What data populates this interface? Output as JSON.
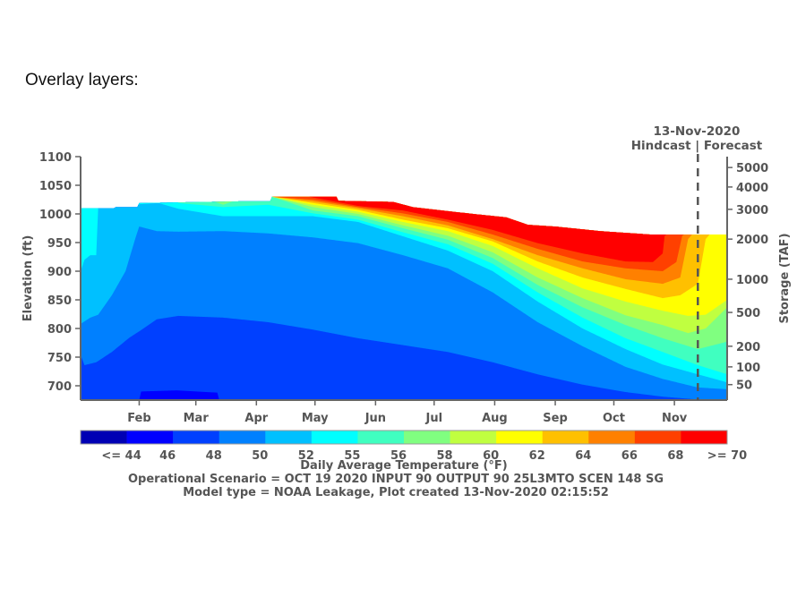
{
  "page": {
    "heading": "Overlay layers:"
  },
  "chart_data": {
    "type": "heatmap",
    "subtype": "filled-contour",
    "xlabel": "",
    "ylabel": "Elevation (ft)",
    "ylim": [
      675,
      1100
    ],
    "xlim": [
      "2020-01-02",
      "2020-11-28"
    ],
    "y_ticks": [
      700,
      750,
      800,
      850,
      900,
      950,
      1000,
      1050,
      1100
    ],
    "x_ticks": [
      {
        "date": "2020-02-01",
        "label": "Feb"
      },
      {
        "date": "2020-03-01",
        "label": "Mar"
      },
      {
        "date": "2020-04-01",
        "label": "Apr"
      },
      {
        "date": "2020-05-01",
        "label": "May"
      },
      {
        "date": "2020-06-01",
        "label": "Jun"
      },
      {
        "date": "2020-07-01",
        "label": "Jul"
      },
      {
        "date": "2020-08-01",
        "label": "Aug"
      },
      {
        "date": "2020-09-01",
        "label": "Sep"
      },
      {
        "date": "2020-10-01",
        "label": "Oct"
      },
      {
        "date": "2020-11-01",
        "label": "Nov"
      }
    ],
    "storage_axis": {
      "label": "Storage (TAF)",
      "ticks": [
        {
          "storage": 5000,
          "elevation_ft": 1081
        },
        {
          "storage": 4000,
          "elevation_ft": 1047
        },
        {
          "storage": 3000,
          "elevation_ft": 1008
        },
        {
          "storage": 2000,
          "elevation_ft": 956
        },
        {
          "storage": 1000,
          "elevation_ft": 886
        },
        {
          "storage": 500,
          "elevation_ft": 828
        },
        {
          "storage": 200,
          "elevation_ft": 769
        },
        {
          "storage": 100,
          "elevation_ft": 733
        },
        {
          "storage": 50,
          "elevation_ft": 702
        }
      ]
    },
    "marker": {
      "date": "2020-11-13",
      "label": "13-Nov-2020",
      "sublabel": "Hindcast | Forecast"
    },
    "colorbar": {
      "title": "Daily Average Temperature (°F)",
      "labels": [
        "<= 44",
        "46",
        "48",
        "50",
        "52",
        "55",
        "56",
        "58",
        "60",
        "62",
        "64",
        "66",
        "68",
        ">= 70"
      ],
      "colors": [
        "#0000b4",
        "#0000ff",
        "#0040ff",
        "#0080ff",
        "#00c0ff",
        "#00ffff",
        "#40ffc0",
        "#80ff80",
        "#c0ff40",
        "#ffff00",
        "#ffc000",
        "#ff8000",
        "#ff4000",
        "#ff0000"
      ]
    },
    "water_surface": [
      [
        "2020-01-02",
        1010
      ],
      [
        "2020-01-19",
        1010
      ],
      [
        "2020-01-20",
        1012
      ],
      [
        "2020-01-31",
        1012
      ],
      [
        "2020-02-01",
        1019
      ],
      [
        "2020-03-23",
        1022
      ],
      [
        "2020-04-08",
        1022
      ],
      [
        "2020-04-09",
        1030
      ],
      [
        "2020-05-12",
        1030
      ],
      [
        "2020-05-13",
        1023
      ],
      [
        "2020-06-10",
        1021
      ],
      [
        "2020-06-20",
        1012
      ],
      [
        "2020-07-05",
        1006
      ],
      [
        "2020-07-21",
        1000
      ],
      [
        "2020-08-07",
        994
      ],
      [
        "2020-08-18",
        981
      ],
      [
        "2020-09-01",
        978
      ],
      [
        "2020-09-24",
        970
      ],
      [
        "2020-10-20",
        964
      ],
      [
        "2020-11-28",
        964
      ]
    ],
    "base_color": "#0000ff",
    "isotherms": [
      {
        "threshold": 46,
        "color": "#0040ff",
        "points": [
          [
            "2020-01-02",
            675
          ],
          [
            "2020-02-01",
            675
          ],
          [
            "2020-02-02",
            690
          ],
          [
            "2020-02-20",
            692
          ],
          [
            "2020-03-12",
            688
          ],
          [
            "2020-03-13",
            675
          ],
          [
            "2020-11-28",
            675
          ]
        ]
      },
      {
        "threshold": 48,
        "color": "#0080ff",
        "points": [
          [
            "2020-01-02",
            754
          ],
          [
            "2020-01-04",
            736
          ],
          [
            "2020-01-10",
            741
          ],
          [
            "2020-01-18",
            759
          ],
          [
            "2020-01-27",
            784
          ],
          [
            "2020-02-01",
            795
          ],
          [
            "2020-02-10",
            816
          ],
          [
            "2020-02-21",
            822
          ],
          [
            "2020-03-15",
            819
          ],
          [
            "2020-04-07",
            811
          ],
          [
            "2020-04-30",
            798
          ],
          [
            "2020-05-23",
            783
          ],
          [
            "2020-06-15",
            771
          ],
          [
            "2020-07-08",
            759
          ],
          [
            "2020-07-31",
            741
          ],
          [
            "2020-08-23",
            720
          ],
          [
            "2020-09-15",
            702
          ],
          [
            "2020-10-07",
            689
          ],
          [
            "2020-10-26",
            681
          ],
          [
            "2020-11-13",
            676
          ],
          [
            "2020-11-28",
            675
          ]
        ]
      },
      {
        "threshold": 50,
        "color": "#00c0ff",
        "points": [
          [
            "2020-01-02",
            808
          ],
          [
            "2020-01-07",
            819
          ],
          [
            "2020-01-11",
            824
          ],
          [
            "2020-01-18",
            858
          ],
          [
            "2020-01-25",
            900
          ],
          [
            "2020-01-30",
            957
          ],
          [
            "2020-02-01",
            978
          ],
          [
            "2020-02-10",
            970
          ],
          [
            "2020-02-21",
            969
          ],
          [
            "2020-03-15",
            970
          ],
          [
            "2020-04-07",
            966
          ],
          [
            "2020-04-30",
            959
          ],
          [
            "2020-05-23",
            949
          ],
          [
            "2020-06-15",
            928
          ],
          [
            "2020-07-08",
            905
          ],
          [
            "2020-07-31",
            863
          ],
          [
            "2020-08-23",
            811
          ],
          [
            "2020-09-15",
            769
          ],
          [
            "2020-10-07",
            733
          ],
          [
            "2020-10-26",
            712
          ],
          [
            "2020-11-13",
            697
          ],
          [
            "2020-11-28",
            694
          ]
        ]
      },
      {
        "threshold": 52,
        "color": "#00ffff",
        "points": [
          [
            "2020-01-02",
            900
          ],
          [
            "2020-01-04",
            920
          ],
          [
            "2020-01-07",
            928
          ],
          [
            "2020-01-10",
            928
          ],
          [
            "2020-01-11",
            1012
          ],
          [
            "2020-02-10",
            1019
          ],
          [
            "2020-02-11",
            1019
          ],
          [
            "2020-02-21",
            1009
          ],
          [
            "2020-03-15",
            996
          ],
          [
            "2020-04-07",
            996
          ],
          [
            "2020-04-30",
            996
          ],
          [
            "2020-05-23",
            986
          ],
          [
            "2020-06-15",
            961
          ],
          [
            "2020-07-08",
            936
          ],
          [
            "2020-07-31",
            900
          ],
          [
            "2020-08-23",
            847
          ],
          [
            "2020-09-15",
            800
          ],
          [
            "2020-10-07",
            764
          ],
          [
            "2020-10-26",
            737
          ],
          [
            "2020-11-13",
            720
          ],
          [
            "2020-11-28",
            706
          ]
        ]
      },
      {
        "threshold": 55,
        "color": "#40ffc0",
        "points": [
          [
            "2020-02-21",
            1019
          ],
          [
            "2020-03-15",
            1012
          ],
          [
            "2020-04-07",
            1016
          ],
          [
            "2020-04-30",
            1001
          ],
          [
            "2020-05-23",
            990
          ],
          [
            "2020-06-15",
            968
          ],
          [
            "2020-07-08",
            947
          ],
          [
            "2020-07-31",
            913
          ],
          [
            "2020-08-23",
            863
          ],
          [
            "2020-09-15",
            819
          ],
          [
            "2020-10-07",
            783
          ],
          [
            "2020-10-26",
            759
          ],
          [
            "2020-11-13",
            736
          ],
          [
            "2020-11-28",
            720
          ]
        ]
      },
      {
        "threshold": 56,
        "color": "#80ff80",
        "points": [
          [
            "2020-03-10",
            1022
          ],
          [
            "2020-03-15",
            1016
          ],
          [
            "2020-03-20",
            1022
          ],
          [
            "2020-04-09",
            1030
          ],
          [
            "2020-04-30",
            1006
          ],
          [
            "2020-05-23",
            996
          ],
          [
            "2020-06-15",
            975
          ],
          [
            "2020-07-08",
            955
          ],
          [
            "2020-07-31",
            923
          ],
          [
            "2020-08-23",
            876
          ],
          [
            "2020-09-15",
            837
          ],
          [
            "2020-10-07",
            806
          ],
          [
            "2020-10-26",
            783
          ],
          [
            "2020-11-13",
            764
          ],
          [
            "2020-11-28",
            777
          ]
        ]
      },
      {
        "threshold": 58,
        "color": "#c0ff40",
        "points": [
          [
            "2020-04-09",
            1030
          ],
          [
            "2020-04-30",
            1012
          ],
          [
            "2020-05-23",
            1000
          ],
          [
            "2020-06-15",
            980
          ],
          [
            "2020-07-08",
            962
          ],
          [
            "2020-07-31",
            933
          ],
          [
            "2020-08-23",
            889
          ],
          [
            "2020-09-15",
            853
          ],
          [
            "2020-10-07",
            823
          ],
          [
            "2020-10-26",
            806
          ],
          [
            "2020-11-08",
            792
          ],
          [
            "2020-11-17",
            800
          ],
          [
            "2020-11-28",
            837
          ]
        ]
      },
      {
        "threshold": 60,
        "color": "#ffff00",
        "points": [
          [
            "2020-04-09",
            1030
          ],
          [
            "2020-04-30",
            1016
          ],
          [
            "2020-05-23",
            1004
          ],
          [
            "2020-06-15",
            986
          ],
          [
            "2020-07-08",
            970
          ],
          [
            "2020-07-31",
            944
          ],
          [
            "2020-08-23",
            905
          ],
          [
            "2020-09-15",
            870
          ],
          [
            "2020-10-07",
            847
          ],
          [
            "2020-10-26",
            831
          ],
          [
            "2020-11-08",
            822
          ],
          [
            "2020-11-17",
            824
          ],
          [
            "2020-11-28",
            850
          ]
        ]
      },
      {
        "threshold": 62,
        "color": "#ffc000",
        "points": [
          [
            "2020-04-09",
            1030
          ],
          [
            "2020-04-30",
            1019
          ],
          [
            "2020-05-23",
            1007
          ],
          [
            "2020-06-15",
            990
          ],
          [
            "2020-07-08",
            975
          ],
          [
            "2020-07-31",
            952
          ],
          [
            "2020-08-23",
            917
          ],
          [
            "2020-09-15",
            889
          ],
          [
            "2020-10-07",
            869
          ],
          [
            "2020-10-26",
            853
          ],
          [
            "2020-11-04",
            858
          ],
          [
            "2020-11-13",
            878
          ],
          [
            "2020-11-17",
            956
          ],
          [
            "2020-11-19",
            964
          ]
        ]
      },
      {
        "threshold": 64,
        "color": "#ff8000",
        "points": [
          [
            "2020-04-09",
            1030
          ],
          [
            "2020-04-30",
            1022
          ],
          [
            "2020-05-23",
            1010
          ],
          [
            "2020-06-15",
            996
          ],
          [
            "2020-07-08",
            980
          ],
          [
            "2020-07-31",
            956
          ],
          [
            "2020-08-23",
            928
          ],
          [
            "2020-09-15",
            905
          ],
          [
            "2020-10-07",
            886
          ],
          [
            "2020-10-26",
            878
          ],
          [
            "2020-11-04",
            889
          ],
          [
            "2020-11-08",
            956
          ],
          [
            "2020-11-10",
            964
          ]
        ]
      },
      {
        "threshold": 66,
        "color": "#ff4000",
        "points": [
          [
            "2020-04-09",
            1030
          ],
          [
            "2020-04-30",
            1025
          ],
          [
            "2020-05-23",
            1012
          ],
          [
            "2020-06-15",
            1001
          ],
          [
            "2020-07-08",
            986
          ],
          [
            "2020-07-31",
            964
          ],
          [
            "2020-08-23",
            939
          ],
          [
            "2020-09-15",
            917
          ],
          [
            "2020-10-07",
            905
          ],
          [
            "2020-10-26",
            900
          ],
          [
            "2020-11-02",
            916
          ],
          [
            "2020-11-05",
            962
          ],
          [
            "2020-11-06",
            964
          ]
        ]
      },
      {
        "threshold": 68,
        "color": "#ff0000",
        "points": [
          [
            "2020-04-28",
            1030
          ],
          [
            "2020-05-23",
            1014
          ],
          [
            "2020-06-15",
            1006
          ],
          [
            "2020-07-08",
            990
          ],
          [
            "2020-07-31",
            972
          ],
          [
            "2020-08-23",
            949
          ],
          [
            "2020-09-15",
            931
          ],
          [
            "2020-10-07",
            917
          ],
          [
            "2020-10-21",
            916
          ],
          [
            "2020-10-26",
            931
          ],
          [
            "2020-10-27",
            962
          ],
          [
            "2020-10-28",
            964
          ]
        ]
      }
    ],
    "footer": [
      "Operational Scenario = OCT 19 2020 INPUT 90 OUTPUT 90 25L3MTO SCEN 148 SG",
      "Model type = NOAA Leakage, Plot created 13-Nov-2020 02:15:52"
    ]
  }
}
